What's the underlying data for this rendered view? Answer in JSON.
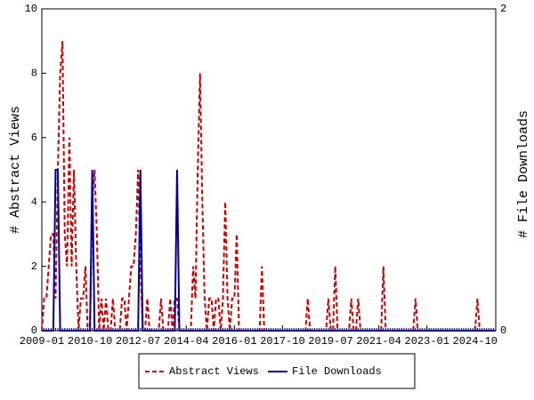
{
  "chart_data": {
    "type": "line",
    "x": [
      "2009-01",
      "2009-02",
      "2009-03",
      "2009-04",
      "2009-05",
      "2009-06",
      "2009-07",
      "2009-08",
      "2009-09",
      "2009-10",
      "2009-11",
      "2009-12",
      "2010-01",
      "2010-02",
      "2010-03",
      "2010-04",
      "2010-05",
      "2010-06",
      "2010-07",
      "2010-08",
      "2010-09",
      "2010-10",
      "2010-11",
      "2010-12",
      "2011-01",
      "2011-02",
      "2011-03",
      "2011-04",
      "2011-05",
      "2011-06",
      "2011-07",
      "2011-08",
      "2011-09",
      "2011-10",
      "2011-11",
      "2011-12",
      "2012-01",
      "2012-02",
      "2012-03",
      "2012-04",
      "2012-05",
      "2012-06",
      "2012-07",
      "2012-08",
      "2012-09",
      "2012-10",
      "2012-11",
      "2012-12",
      "2013-01",
      "2013-02",
      "2013-03",
      "2013-04",
      "2013-05",
      "2013-06",
      "2013-07",
      "2013-08",
      "2013-09",
      "2013-10",
      "2013-11",
      "2013-12",
      "2014-01",
      "2014-02",
      "2014-03",
      "2014-04",
      "2014-05",
      "2014-06",
      "2014-07",
      "2014-08",
      "2014-09",
      "2014-10",
      "2014-11",
      "2014-12",
      "2015-01",
      "2015-02",
      "2015-03",
      "2015-04",
      "2015-05",
      "2015-06",
      "2015-07",
      "2015-08",
      "2015-09",
      "2015-10",
      "2015-11",
      "2015-12",
      "2016-01",
      "2016-02",
      "2016-03",
      "2016-04",
      "2016-05",
      "2016-06",
      "2016-07",
      "2016-08",
      "2016-09",
      "2016-10",
      "2016-11",
      "2016-12",
      "2017-01",
      "2017-02",
      "2017-03",
      "2017-04",
      "2017-05",
      "2017-06",
      "2017-07",
      "2017-08",
      "2017-09",
      "2017-10",
      "2017-11",
      "2017-12",
      "2018-01",
      "2018-02",
      "2018-03",
      "2018-04",
      "2018-05",
      "2018-06",
      "2018-07",
      "2018-08",
      "2018-09",
      "2018-10",
      "2018-11",
      "2018-12",
      "2019-01",
      "2019-02",
      "2019-03",
      "2019-04",
      "2019-05",
      "2019-06",
      "2019-07",
      "2019-08",
      "2019-09",
      "2019-10",
      "2019-11",
      "2019-12",
      "2020-01",
      "2020-02",
      "2020-03",
      "2020-04",
      "2020-05",
      "2020-06",
      "2020-07",
      "2020-08",
      "2020-09",
      "2020-10",
      "2020-11",
      "2020-12",
      "2021-01",
      "2021-02",
      "2021-03",
      "2021-04",
      "2021-05",
      "2021-06",
      "2021-07",
      "2021-08",
      "2021-09",
      "2021-10",
      "2021-11",
      "2021-12",
      "2022-01",
      "2022-02",
      "2022-03",
      "2022-04",
      "2022-05",
      "2022-06",
      "2022-07",
      "2022-08",
      "2022-09",
      "2022-10",
      "2022-11",
      "2022-12",
      "2023-01",
      "2023-02",
      "2023-03",
      "2023-04",
      "2023-05",
      "2023-06",
      "2023-07",
      "2023-08",
      "2023-09",
      "2023-10",
      "2023-11",
      "2023-12",
      "2024-01",
      "2024-02",
      "2024-03",
      "2024-04",
      "2024-05",
      "2024-06",
      "2024-07",
      "2024-08",
      "2024-09",
      "2024-10",
      "2024-11",
      "2024-12",
      "2025-01",
      "2025-02",
      "2025-03",
      "2025-04",
      "2025-05",
      "2025-06",
      "2025-07"
    ],
    "xticks": [
      "2009-01",
      "2010-10",
      "2012-07",
      "2014-04",
      "2016-01",
      "2017-10",
      "2019-07",
      "2021-04",
      "2023-01",
      "2024-10"
    ],
    "ylabel": "# Abstract Views",
    "y2label": "# File Downloads",
    "ylim": [
      0,
      10
    ],
    "yticks": [
      0,
      2,
      4,
      6,
      8,
      10
    ],
    "y2lim": [
      0,
      2
    ],
    "y2ticks": [
      0,
      2
    ],
    "legend": "bottom",
    "series": [
      {
        "name": "Abstract Views",
        "color": "#cc0000",
        "dash": true,
        "values": [
          0,
          1,
          1,
          2,
          3,
          3,
          1,
          5,
          8,
          9,
          3,
          2,
          6,
          2,
          5,
          2,
          0,
          1,
          1,
          2,
          0,
          0,
          4,
          5,
          3,
          0,
          1,
          0,
          1,
          0,
          0,
          1,
          0,
          0,
          0,
          1,
          1,
          0,
          1,
          2,
          2,
          3,
          5,
          2,
          0,
          0,
          1,
          0,
          0,
          0,
          0,
          0,
          1,
          0,
          0,
          0,
          1,
          0,
          1,
          1,
          0,
          0,
          0,
          0,
          0,
          0,
          2,
          1,
          5,
          8,
          4,
          1,
          0,
          1,
          1,
          0,
          1,
          1,
          0,
          1,
          4,
          1,
          0,
          1,
          1,
          3,
          0,
          0,
          0,
          0,
          0,
          0,
          0,
          0,
          0,
          0,
          2,
          0,
          0,
          0,
          0,
          0,
          0,
          0,
          0,
          0,
          0,
          0,
          0,
          0,
          0,
          0,
          0,
          0,
          0,
          0,
          1,
          0,
          0,
          0,
          0,
          0,
          0,
          0,
          0,
          1,
          0,
          0,
          2,
          0,
          0,
          0,
          0,
          0,
          0,
          1,
          0,
          0,
          1,
          0,
          0,
          0,
          0,
          0,
          0,
          0,
          0,
          0,
          0,
          2,
          0,
          0,
          0,
          0,
          0,
          0,
          0,
          0,
          0,
          0,
          0,
          0,
          0,
          1,
          0,
          0,
          0,
          0,
          0,
          0,
          0,
          0,
          0,
          0,
          0,
          0,
          0,
          0,
          0,
          0,
          0,
          0,
          0,
          0,
          0,
          0,
          0,
          0,
          0,
          0,
          1,
          0,
          0,
          0,
          0,
          0,
          0,
          0,
          0
        ]
      },
      {
        "name": "File Downloads",
        "color": "#000099",
        "dash": false,
        "axis": "y2",
        "values": [
          0,
          0,
          0,
          0,
          0,
          0,
          1,
          1,
          0,
          0,
          0,
          0,
          0,
          0,
          0,
          0,
          0,
          0,
          0,
          0,
          0,
          0,
          1,
          0,
          0,
          0,
          0,
          0,
          0,
          0,
          0,
          0,
          0,
          0,
          0,
          0,
          0,
          0,
          0,
          0,
          0,
          0,
          0,
          1,
          0,
          0,
          0,
          0,
          0,
          0,
          0,
          0,
          0,
          0,
          0,
          0,
          0,
          0,
          0,
          1,
          0,
          0,
          0,
          0,
          0,
          0,
          0,
          0,
          0,
          0,
          0,
          0,
          0,
          0,
          0,
          0,
          0,
          0,
          0,
          0,
          0,
          0,
          0,
          0,
          0,
          0,
          0,
          0,
          0,
          0,
          0,
          0,
          0,
          0,
          0,
          0,
          0,
          0,
          0,
          0,
          0,
          0,
          0,
          0,
          0,
          0,
          0,
          0,
          0,
          0,
          0,
          0,
          0,
          0,
          0,
          0,
          0,
          0,
          0,
          0,
          0,
          0,
          0,
          0,
          0,
          0,
          0,
          0,
          0,
          0,
          0,
          0,
          0,
          0,
          0,
          0,
          0,
          0,
          0,
          0,
          0,
          0,
          0,
          0,
          0,
          0,
          0,
          0,
          0,
          0,
          0,
          0,
          0,
          0,
          0,
          0,
          0,
          0,
          0,
          0,
          0,
          0,
          0,
          0,
          0,
          0,
          0,
          0,
          0,
          0,
          0,
          0,
          0,
          0,
          0,
          0,
          0,
          0,
          0,
          0,
          0,
          0,
          0,
          0,
          0,
          0,
          0,
          0,
          0,
          0,
          0,
          0,
          0,
          0,
          0,
          0,
          0,
          0,
          0
        ]
      }
    ]
  }
}
